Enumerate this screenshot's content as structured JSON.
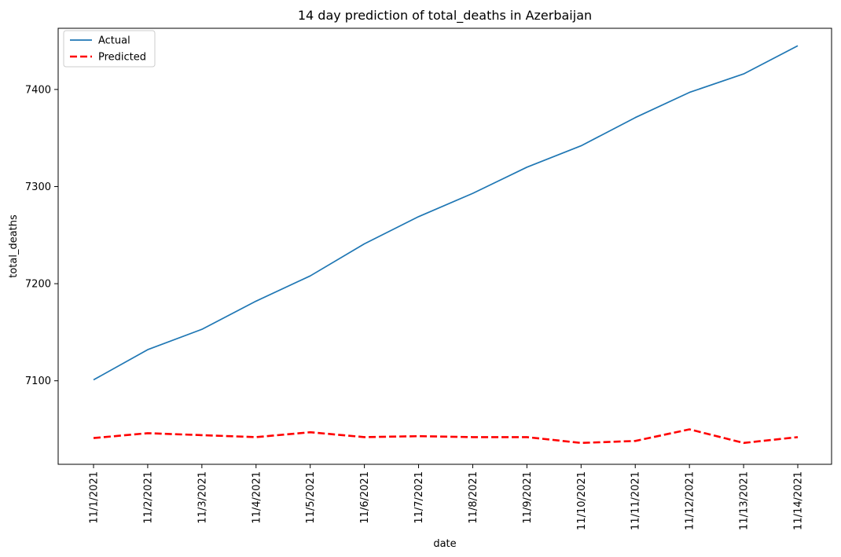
{
  "chart_data": {
    "type": "line",
    "title": "14 day prediction of total_deaths in Azerbaijan",
    "xlabel": "date",
    "ylabel": "total_deaths",
    "categories": [
      "11/1/2021",
      "11/2/2021",
      "11/3/2021",
      "11/4/2021",
      "11/5/2021",
      "11/6/2021",
      "11/7/2021",
      "11/8/2021",
      "11/9/2021",
      "11/10/2021",
      "11/11/2021",
      "11/12/2021",
      "11/13/2021",
      "11/14/2021"
    ],
    "yticks": [
      7100,
      7200,
      7300,
      7400
    ],
    "ylim": [
      7014,
      7463
    ],
    "grid": false,
    "legend_position": "upper-left",
    "series": [
      {
        "name": "Actual",
        "color": "#1f77b4",
        "style": "solid",
        "values": [
          7101,
          7132,
          7153,
          7182,
          7208,
          7241,
          7269,
          7293,
          7320,
          7342,
          7371,
          7397,
          7416,
          7445
        ]
      },
      {
        "name": "Predicted",
        "color": "#ff0000",
        "style": "dashed",
        "values": [
          7041,
          7046,
          7044,
          7042,
          7047,
          7042,
          7043,
          7042,
          7042,
          7036,
          7038,
          7050,
          7036,
          7042
        ]
      }
    ]
  }
}
